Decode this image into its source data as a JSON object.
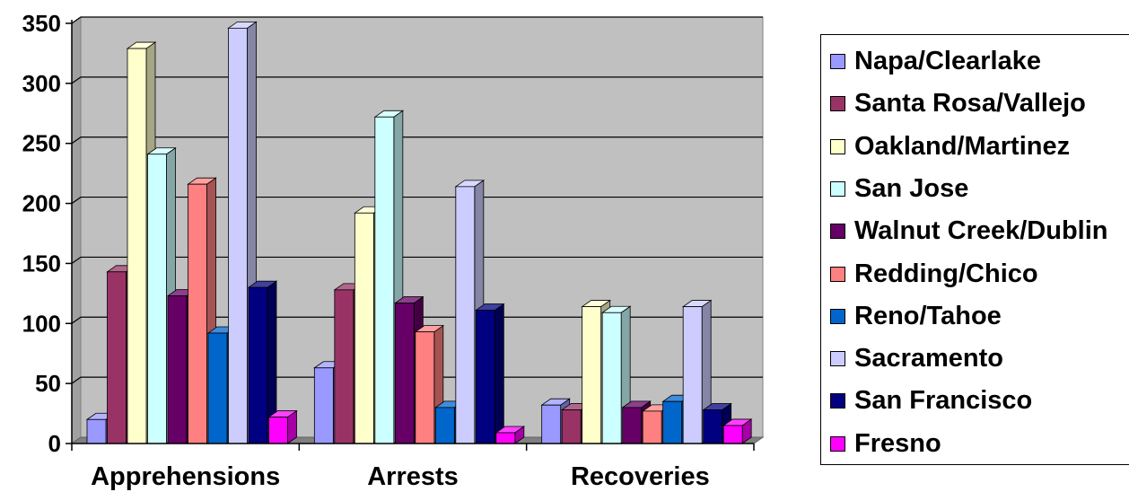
{
  "chart_data": {
    "type": "bar",
    "categories": [
      "Apprehensions",
      "Arrests",
      "Recoveries"
    ],
    "yticks": [
      "0",
      "50",
      "100",
      "150",
      "200",
      "250",
      "300",
      "350"
    ],
    "ylim": [
      0,
      350
    ],
    "grid": true,
    "legend_position": "right",
    "series": [
      {
        "name": "Napa/Clearlake",
        "color": "#9999ff",
        "values": [
          20,
          63,
          32
        ]
      },
      {
        "name": "Santa Rosa/Vallejo",
        "color": "#993366",
        "values": [
          143,
          128,
          28
        ]
      },
      {
        "name": "Oakland/Martinez",
        "color": "#ffffcc",
        "values": [
          329,
          192,
          114
        ]
      },
      {
        "name": "San Jose",
        "color": "#ccffff",
        "values": [
          241,
          272,
          109
        ]
      },
      {
        "name": "Walnut Creek/Dublin",
        "color": "#660066",
        "values": [
          123,
          117,
          30
        ]
      },
      {
        "name": "Redding/Chico",
        "color": "#ff8080",
        "values": [
          216,
          93,
          27
        ]
      },
      {
        "name": "Reno/Tahoe",
        "color": "#0066cc",
        "values": [
          92,
          30,
          35
        ]
      },
      {
        "name": "Sacramento",
        "color": "#ccccff",
        "values": [
          346,
          214,
          114
        ]
      },
      {
        "name": "San Francisco",
        "color": "#000080",
        "values": [
          130,
          111,
          28
        ]
      },
      {
        "name": "Fresno",
        "color": "#ff00ff",
        "values": [
          22,
          9,
          15
        ]
      }
    ]
  }
}
